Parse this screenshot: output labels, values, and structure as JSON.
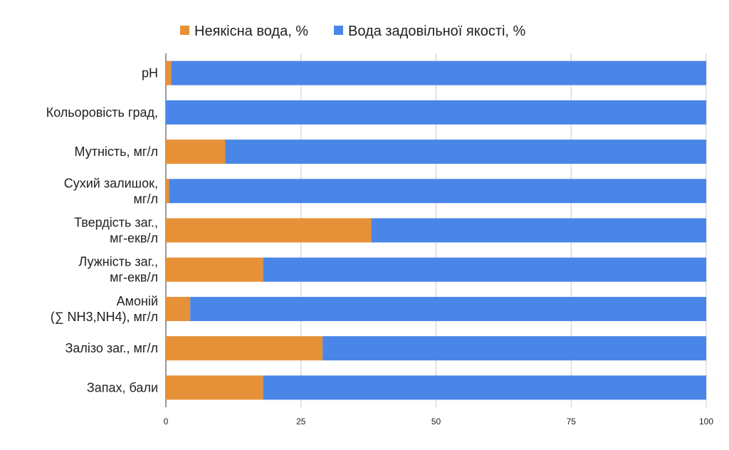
{
  "chart_data": {
    "type": "bar",
    "orientation": "horizontal",
    "stacked": true,
    "title": "",
    "xlabel": "",
    "ylabel": "",
    "xlim": [
      0,
      100
    ],
    "x_ticks": [
      "0",
      "25",
      "50",
      "75",
      "100"
    ],
    "grid": "vertical",
    "legend_position": "top",
    "categories": [
      [
        "pH"
      ],
      [
        "Кольоровість град,"
      ],
      [
        "Мутність, мг/л"
      ],
      [
        "Сухий залишок,",
        "мг/л"
      ],
      [
        "Твердість заг.,",
        "мг-екв/л"
      ],
      [
        "Лужність заг.,",
        "мг-екв/л"
      ],
      [
        "Амоній",
        "(∑ NH3,NH4), мг/л"
      ],
      [
        "Залізо заг., мг/л"
      ],
      [
        "Запах, бали"
      ]
    ],
    "series": [
      {
        "name": "Неякісна вода, %",
        "color": "#e69138",
        "values": [
          1,
          0,
          11,
          0.6,
          38,
          18,
          4.5,
          29,
          18
        ]
      },
      {
        "name": "Вода задовільної якості, %",
        "color": "#4a86e8",
        "values": [
          99,
          100,
          89,
          99.4,
          62,
          82,
          95.5,
          71,
          82
        ]
      }
    ]
  }
}
